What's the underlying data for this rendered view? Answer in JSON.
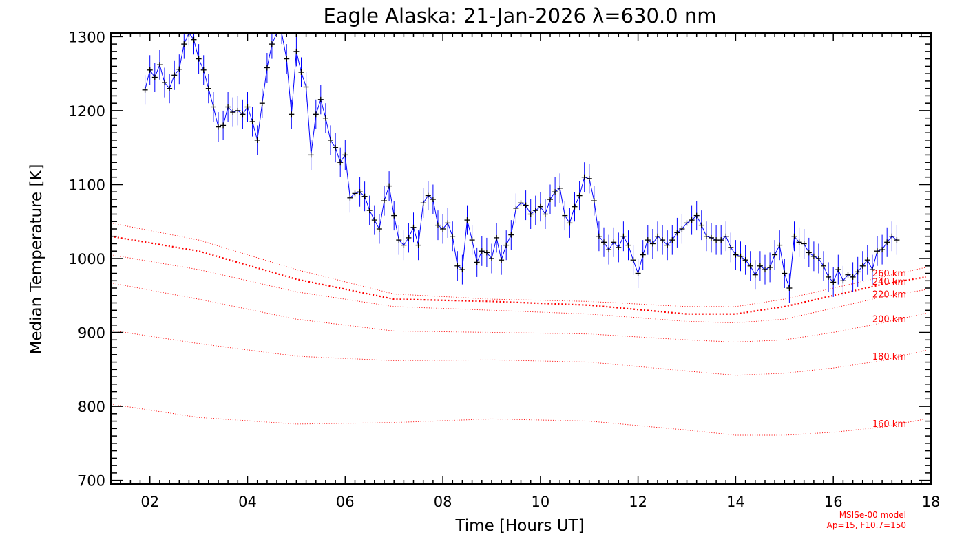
{
  "chart_data": {
    "type": "line",
    "title": "Eagle Alaska: 21-Jan-2026 λ=630.0 nm",
    "xlabel": "Time [Hours UT]",
    "ylabel": "Median Temperature [K]",
    "xlim": [
      1.2,
      18
    ],
    "ylim": [
      695,
      1305
    ],
    "x_ticks": [
      2,
      4,
      6,
      8,
      10,
      12,
      14,
      16,
      18
    ],
    "x_tick_labels": [
      "02",
      "04",
      "06",
      "08",
      "10",
      "12",
      "14",
      "16",
      "18"
    ],
    "y_ticks": [
      700,
      800,
      900,
      1000,
      1100,
      1200,
      1300
    ],
    "y_tick_labels": [
      "700",
      "800",
      "900",
      "1000",
      "1100",
      "1200",
      "1300"
    ],
    "error_bar": 20,
    "colors": {
      "data": "#0000ff",
      "marker": "#000000",
      "model": "#ff0000"
    },
    "series": [
      {
        "name": "Median Temperature",
        "x": [
          1.9,
          2.0,
          2.1,
          2.2,
          2.3,
          2.4,
          2.5,
          2.6,
          2.7,
          2.8,
          2.9,
          3.0,
          3.1,
          3.2,
          3.3,
          3.4,
          3.5,
          3.6,
          3.7,
          3.8,
          3.9,
          4.0,
          4.1,
          4.2,
          4.3,
          4.4,
          4.5,
          4.6,
          4.7,
          4.8,
          4.9,
          5.0,
          5.1,
          5.2,
          5.3,
          5.4,
          5.5,
          5.6,
          5.7,
          5.8,
          5.9,
          6.0,
          6.1,
          6.2,
          6.3,
          6.4,
          6.5,
          6.6,
          6.7,
          6.8,
          6.9,
          7.0,
          7.1,
          7.2,
          7.3,
          7.4,
          7.5,
          7.6,
          7.7,
          7.8,
          7.9,
          8.0,
          8.1,
          8.2,
          8.3,
          8.4,
          8.5,
          8.6,
          8.7,
          8.8,
          8.9,
          9.0,
          9.1,
          9.2,
          9.3,
          9.4,
          9.5,
          9.6,
          9.7,
          9.8,
          9.9,
          10.0,
          10.1,
          10.2,
          10.3,
          10.4,
          10.5,
          10.6,
          10.7,
          10.8,
          10.9,
          11.0,
          11.1,
          11.2,
          11.3,
          11.4,
          11.5,
          11.6,
          11.7,
          11.8,
          11.9,
          12.0,
          12.1,
          12.2,
          12.3,
          12.4,
          12.5,
          12.6,
          12.7,
          12.8,
          12.9,
          13.0,
          13.1,
          13.2,
          13.3,
          13.4,
          13.5,
          13.6,
          13.7,
          13.8,
          13.9,
          14.0,
          14.1,
          14.2,
          14.3,
          14.4,
          14.5,
          14.6,
          14.7,
          14.8,
          14.9,
          15.0,
          15.1,
          15.2,
          15.3,
          15.4,
          15.5,
          15.6,
          15.7,
          15.8,
          15.9,
          16.0,
          16.1,
          16.2,
          16.3,
          16.4,
          16.5,
          16.6,
          16.7,
          16.8,
          16.9,
          17.0,
          17.1,
          17.2,
          17.3
        ],
        "y": [
          1228,
          1255,
          1245,
          1262,
          1238,
          1230,
          1248,
          1256,
          1290,
          1308,
          1296,
          1270,
          1255,
          1230,
          1205,
          1178,
          1180,
          1205,
          1198,
          1200,
          1195,
          1205,
          1185,
          1160,
          1210,
          1258,
          1290,
          1320,
          1310,
          1270,
          1195,
          1280,
          1252,
          1232,
          1140,
          1195,
          1215,
          1190,
          1160,
          1150,
          1130,
          1140,
          1082,
          1088,
          1090,
          1084,
          1065,
          1052,
          1040,
          1078,
          1098,
          1058,
          1025,
          1018,
          1028,
          1042,
          1018,
          1075,
          1085,
          1080,
          1045,
          1040,
          1048,
          1030,
          990,
          985,
          1052,
          1025,
          995,
          1010,
          1008,
          1000,
          1028,
          998,
          1018,
          1032,
          1068,
          1075,
          1072,
          1060,
          1065,
          1070,
          1060,
          1080,
          1090,
          1095,
          1058,
          1048,
          1070,
          1085,
          1110,
          1108,
          1078,
          1030,
          1022,
          1012,
          1022,
          1015,
          1030,
          1018,
          998,
          980,
          1005,
          1025,
          1020,
          1030,
          1025,
          1018,
          1025,
          1035,
          1040,
          1048,
          1052,
          1058,
          1045,
          1030,
          1028,
          1025,
          1025,
          1030,
          1015,
          1005,
          1003,
          998,
          990,
          978,
          990,
          985,
          988,
          1005,
          1018,
          980,
          960,
          1030,
          1022,
          1020,
          1008,
          1003,
          1000,
          990,
          975,
          968,
          985,
          970,
          978,
          975,
          982,
          990,
          998,
          985,
          1010,
          1012,
          1022,
          1030,
          1025
        ]
      }
    ],
    "model_curves": [
      {
        "label": "260 km",
        "x": [
          1.2,
          3,
          5,
          7,
          9,
          11,
          13,
          14,
          15,
          16,
          17,
          17.9
        ],
        "y": [
          1048,
          1025,
          985,
          952,
          945,
          942,
          935,
          935,
          945,
          960,
          975,
          988
        ]
      },
      {
        "label": "240 km",
        "x": [
          1.2,
          3,
          5,
          7,
          9,
          11,
          13,
          14,
          15,
          16,
          17,
          17.9
        ],
        "y": [
          1030,
          1010,
          972,
          945,
          942,
          937,
          925,
          925,
          935,
          950,
          965,
          975
        ]
      },
      {
        "label": "220 km",
        "x": [
          1.2,
          3,
          5,
          7,
          9,
          11,
          13,
          14,
          15,
          16,
          17,
          17.9
        ],
        "y": [
          1005,
          985,
          955,
          935,
          930,
          925,
          915,
          913,
          918,
          933,
          948,
          958
        ]
      },
      {
        "label": "200 km",
        "x": [
          1.2,
          3,
          5,
          7,
          9,
          11,
          13,
          14,
          15,
          16,
          17,
          17.9
        ],
        "y": [
          967,
          945,
          918,
          902,
          900,
          898,
          890,
          887,
          890,
          900,
          913,
          926
        ]
      },
      {
        "label": "180 km",
        "x": [
          1.2,
          3,
          5,
          7,
          9,
          11,
          13,
          14,
          15,
          16,
          17,
          17.9
        ],
        "y": [
          903,
          885,
          868,
          862,
          863,
          860,
          848,
          842,
          845,
          852,
          862,
          876
        ]
      },
      {
        "label": "160 km",
        "x": [
          1.2,
          3,
          5,
          7,
          9,
          11,
          13,
          14,
          15,
          16,
          17,
          17.9
        ],
        "y": [
          803,
          785,
          776,
          778,
          783,
          780,
          768,
          761,
          761,
          765,
          772,
          783
        ]
      }
    ],
    "annotations": [
      "MSISe-00 model",
      "Ap=15, F10.7=150"
    ]
  }
}
